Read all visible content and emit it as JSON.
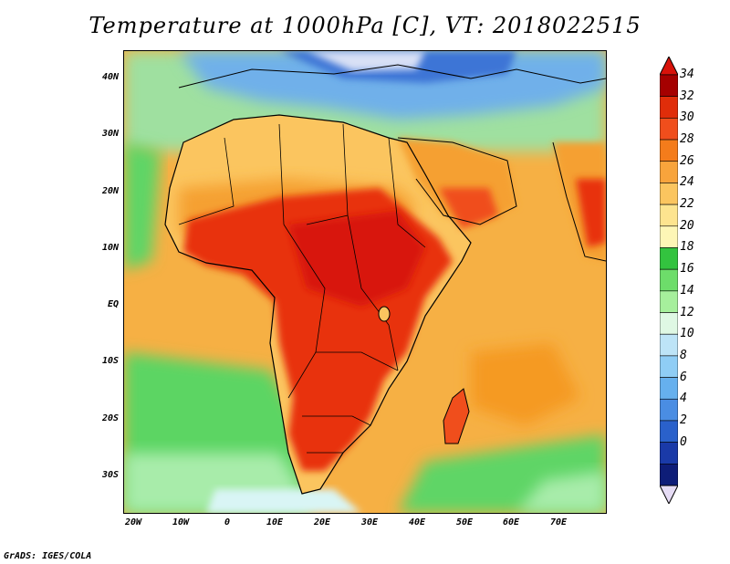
{
  "title": "Temperature at 1000hPa [C], VT: 2018022515",
  "credit": "GrADS: IGES/COLA",
  "map": {
    "lon_range": [
      -22,
      80
    ],
    "lat_range": [
      -36,
      45
    ],
    "lat_ticks": [
      "40N",
      "30N",
      "20N",
      "10N",
      "EQ",
      "10S",
      "20S",
      "30S"
    ],
    "lat_values": [
      40,
      30,
      20,
      10,
      0,
      -10,
      -20,
      -30
    ],
    "lon_ticks": [
      "20W",
      "10W",
      "0",
      "10E",
      "20E",
      "30E",
      "40E",
      "50E",
      "60E",
      "70E"
    ],
    "lon_values": [
      -20,
      -10,
      0,
      10,
      20,
      30,
      40,
      50,
      60,
      70
    ]
  },
  "colorbar": {
    "labels": [
      "34",
      "32",
      "30",
      "28",
      "26",
      "24",
      "22",
      "20",
      "18",
      "16",
      "14",
      "12",
      "10",
      "8",
      "6",
      "4",
      "2",
      "0"
    ],
    "colors": [
      "#a50000",
      "#e02d0a",
      "#f04e1c",
      "#f47c1b",
      "#f8a43c",
      "#fbc55f",
      "#fde48f",
      "#fdf6b6",
      "#33c33f",
      "#6ddd6a",
      "#a6ef9c",
      "#dff8e4",
      "#bde4f7",
      "#8fcdf5",
      "#66b0ee",
      "#4a8de3",
      "#2a61cb",
      "#1a3aa8",
      "#0e1d78"
    ],
    "over_color": "#d8120a",
    "under_color": "#e6dcf5"
  }
}
